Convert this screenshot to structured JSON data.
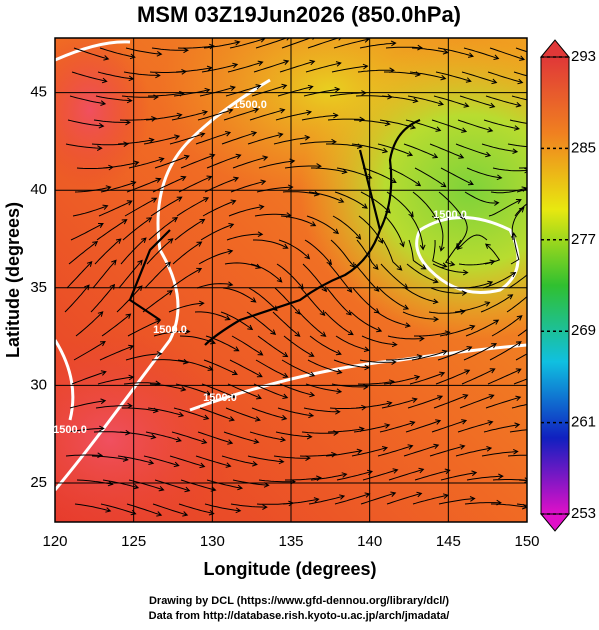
{
  "chart_data": {
    "type": "map",
    "title": "MSM 03Z19Jun2026 (850.0hPa)",
    "xlabel": "Longitude (degrees)",
    "ylabel": "Latitude  (degrees)",
    "xlim": [
      120,
      150
    ],
    "xticks": [
      120,
      125,
      130,
      135,
      140,
      145,
      150
    ],
    "ylim": [
      23,
      47.8
    ],
    "yticks": [
      25,
      30,
      35,
      40,
      45
    ],
    "colorbar": {
      "lim": [
        253,
        293
      ],
      "ticks": [
        253,
        261,
        269,
        277,
        285,
        293
      ],
      "colors": [
        "#e010c8",
        "#1020c0",
        "#10c0e0",
        "#30c030",
        "#e8e810",
        "#f08020",
        "#e03838"
      ]
    },
    "contour_labels": [
      "1500.0",
      "1500.0",
      "1500.0",
      "1500.0",
      "1500.0"
    ],
    "credits": [
      "Drawing by DCL (https://www.gfd-dennou.org/library/dcl/)",
      "Data from http://database.rish.kyoto-u.ac.jp/arch/jmadata/"
    ]
  }
}
